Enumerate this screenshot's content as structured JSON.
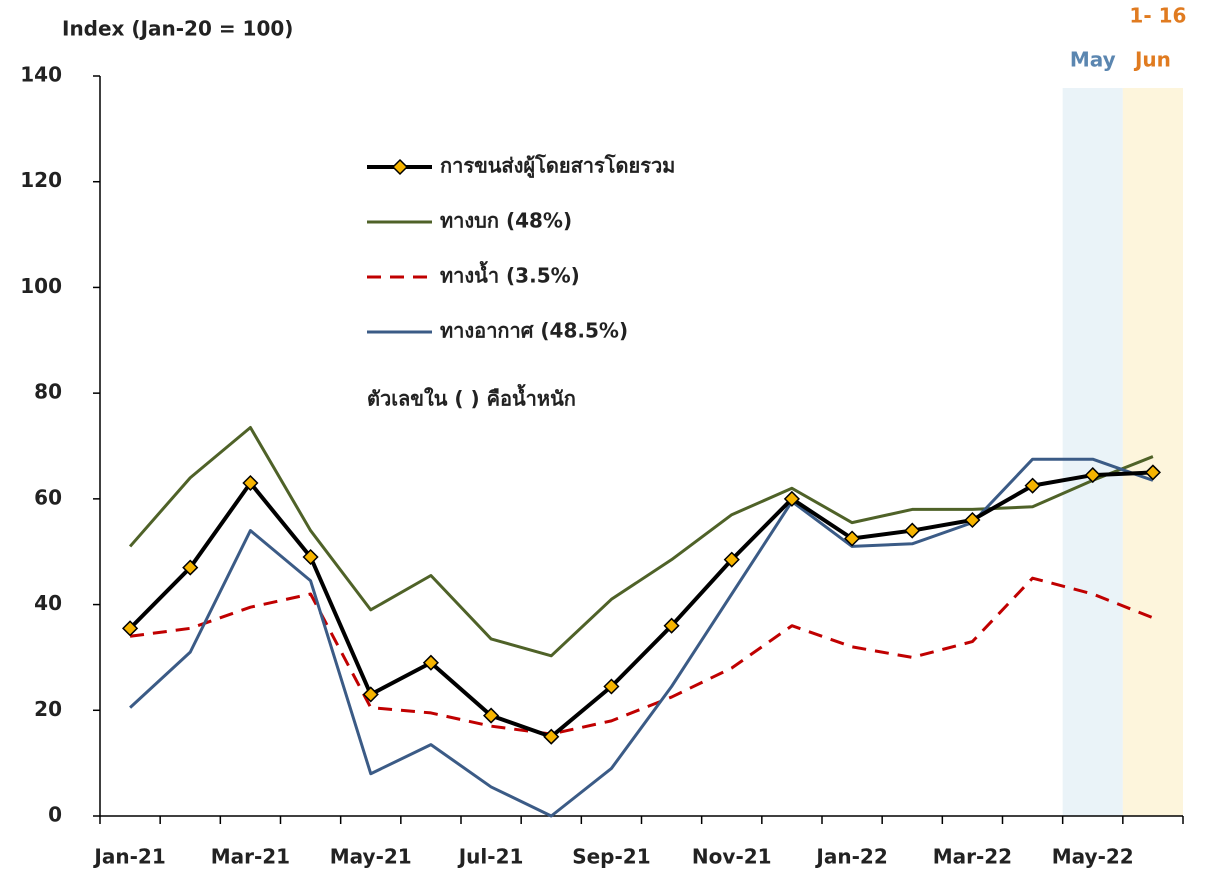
{
  "chart_data": {
    "type": "line",
    "y_axis_label": "Index (Jan-20 = 100)",
    "categories": [
      "Jan-21",
      null,
      "Mar-21",
      null,
      "May-21",
      null,
      "Jul-21",
      null,
      "Sep-21",
      null,
      "Nov-21",
      null,
      "Jan-22",
      null,
      "Mar-22",
      null,
      "May-22",
      null
    ],
    "ylim": [
      0,
      140
    ],
    "yticks": [
      0,
      20,
      40,
      60,
      80,
      100,
      120,
      140
    ],
    "grid": false,
    "legend_position": "upper center",
    "legend_note": "ตัวเลขใน ( ) คือน้ำหนัก",
    "highlights": [
      {
        "label": "May",
        "color": "#eaf3f8",
        "label_color": "#5b86b0"
      },
      {
        "label": "Jun",
        "note": "1- 16",
        "color": "#fdf5dc",
        "label_color": "#e07b20"
      }
    ],
    "series": [
      {
        "name": "การขนส่งผู้โดยสารโดยรวม",
        "color": "#000000",
        "marker": "diamond",
        "marker_color": "#f6b400",
        "width": 4,
        "dash": "solid",
        "values": [
          35.5,
          47,
          63,
          49,
          23,
          29,
          19,
          15,
          24.5,
          36,
          48.5,
          60,
          52.5,
          54,
          56,
          62.5,
          64.5,
          65
        ]
      },
      {
        "name": "ทางบก (48%)",
        "color": "#4f6228",
        "width": 3,
        "dash": "solid",
        "values": [
          51,
          64,
          73.5,
          54,
          39,
          45.5,
          33.5,
          30.3,
          41,
          48.5,
          57,
          62,
          55.5,
          58,
          58,
          58.5,
          63.5,
          68
        ]
      },
      {
        "name": "ทางน้ำ (3.5%)",
        "color": "#c00000",
        "width": 3,
        "dash": "dashed",
        "values": [
          34,
          35.5,
          39.5,
          42,
          20.5,
          19.5,
          17,
          15.5,
          18,
          22.5,
          28,
          36,
          32,
          30,
          33,
          45,
          42,
          37.5
        ]
      },
      {
        "name": "ทางอากาศ (48.5%)",
        "color": "#3b5b86",
        "width": 3,
        "dash": "solid",
        "values": [
          20.5,
          31,
          54,
          44.5,
          8,
          13.5,
          5.5,
          0,
          9,
          24.5,
          42,
          59.5,
          51,
          51.5,
          55.5,
          67.5,
          67.5,
          63.5
        ]
      }
    ]
  }
}
